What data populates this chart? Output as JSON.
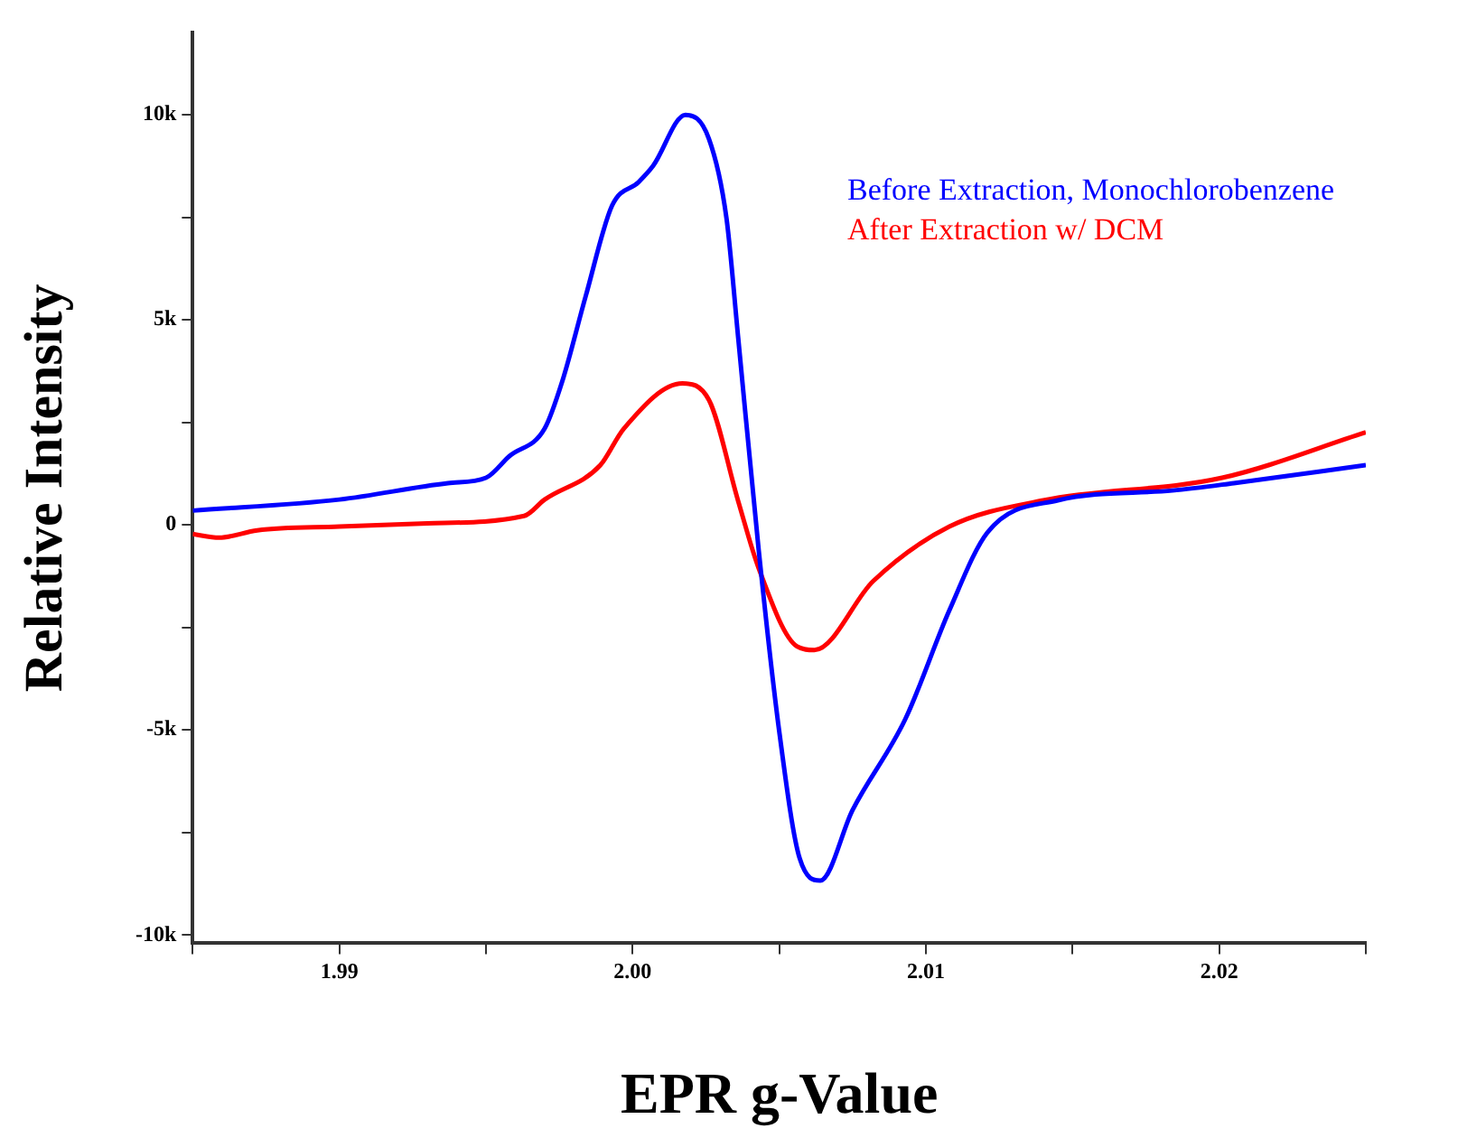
{
  "chart_data": {
    "type": "line",
    "xlabel": "EPR g-Value",
    "ylabel": "Relative Intensity",
    "xlim": [
      1.985,
      2.025
    ],
    "ylim": [
      -10200,
      12000
    ],
    "xticks": [
      {
        "value": 1.985,
        "label": null
      },
      1.99,
      {
        "value": 1.995,
        "label": null
      },
      {
        "value": 2.0,
        "label": "2.00"
      },
      {
        "value": 2.005,
        "label": null
      },
      2.01,
      {
        "value": 2.015,
        "label": null
      },
      2.02,
      {
        "value": 2.025,
        "label": null
      }
    ],
    "yticks": [
      {
        "value": -10000,
        "label": "-10k"
      },
      {
        "value": -7500,
        "label": null
      },
      {
        "value": -5000,
        "label": "-5k"
      },
      {
        "value": -2500,
        "label": null
      },
      0,
      {
        "value": 2500,
        "label": null
      },
      {
        "value": 5000,
        "label": "5k"
      },
      {
        "value": 7500,
        "label": null
      },
      {
        "value": 10000,
        "label": "10k"
      }
    ],
    "grid": false,
    "legend": "top right",
    "marker": "none",
    "line_style": "solid",
    "series": [
      {
        "name": "Before Extraction, Monochlorobenzene",
        "color": "#0000ff",
        "x": [
          1.985,
          1.99,
          1.9937,
          1.995,
          1.9958,
          1.997,
          1.9976,
          1.9984,
          1.9993,
          2.0002,
          2.0007,
          2.0018,
          2.0026,
          2.0032,
          2.0036,
          2.0043,
          2.005,
          2.0057,
          2.0064,
          2.0075,
          2.0093,
          2.0108,
          2.0121,
          2.0145,
          2.0184,
          2.0205,
          2.025
        ],
        "values": [
          350,
          620,
          1020,
          1150,
          1680,
          2350,
          3500,
          5580,
          7790,
          8360,
          8760,
          10000,
          9420,
          7480,
          4560,
          -620,
          -5040,
          -8140,
          -8670,
          -6950,
          -4730,
          -2080,
          -180,
          600,
          840,
          1020,
          1460
        ]
      },
      {
        "name": "After Extraction w/ DCM",
        "color": "#ff0000",
        "x": [
          1.985,
          1.9859,
          1.9872,
          1.99,
          1.993,
          1.9963,
          1.997,
          1.9989,
          1.9997,
          2.0017,
          2.0026,
          2.0036,
          2.0043,
          2.0056,
          2.0062,
          2.0082,
          2.0108,
          2.014,
          2.0201,
          2.025
        ],
        "values": [
          -220,
          -310,
          -130,
          -40,
          40,
          220,
          620,
          1460,
          2350,
          3450,
          3050,
          580,
          -1060,
          -2960,
          -3050,
          -1370,
          -40,
          600,
          1150,
          2260
        ]
      }
    ]
  }
}
